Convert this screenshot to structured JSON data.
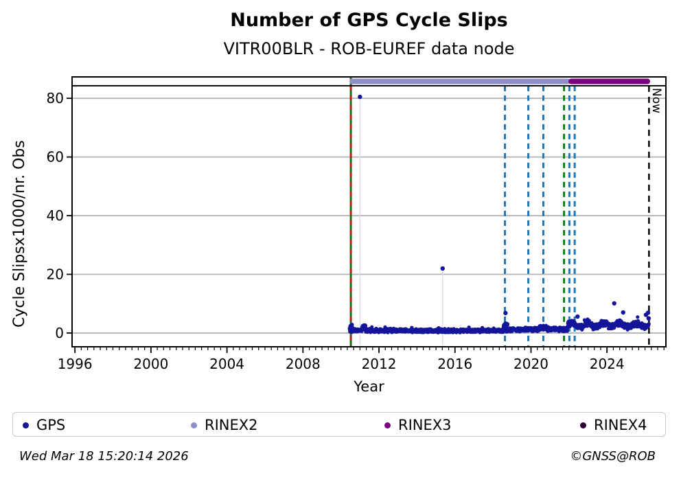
{
  "header": {
    "title": "Number of GPS Cycle Slips",
    "subtitle": "VITR00BLR - ROB-EUREF data node"
  },
  "footer": {
    "timestamp": "Wed Mar 18 15:20:14 2026",
    "credit": "©GNSS@ROB"
  },
  "chart_data": {
    "type": "scatter",
    "title": "Number of GPS Cycle Slips",
    "subtitle": "VITR00BLR - ROB-EUREF data node",
    "xlabel": "Year",
    "ylabel": "Cycle Slipsx1000/nr. Obs",
    "xlim": [
      1995.85,
      2027.1
    ],
    "ylim": [
      -4.7,
      87.3
    ],
    "xticks": [
      1996,
      2000,
      2004,
      2008,
      2012,
      2016,
      2020,
      2024
    ],
    "yticks": [
      0,
      20,
      40,
      60,
      80
    ],
    "minor_tick_step_years": 0.33333,
    "grid": "horizontal-only",
    "grid_color": "#b4b4b4",
    "separator_line_value": 84.3,
    "now": {
      "label": "Now",
      "year": 2026.21
    },
    "colors": {
      "gps": "#15159b",
      "rinex2": "#8f8fc8",
      "rinex3": "#7a0480",
      "rinex4": "#2f0233",
      "event_blue": "#1f77b4",
      "event_green": "#067c06",
      "event_red": "#d11212",
      "stem": "#d9dcea"
    },
    "legend": [
      {
        "label": "GPS",
        "color": "#15159b"
      },
      {
        "label": "RINEX2",
        "color": "#8f8fc8"
      },
      {
        "label": "RINEX3",
        "color": "#7a0480"
      },
      {
        "label": "RINEX4",
        "color": "#2f0233"
      }
    ],
    "rinex_bars": [
      {
        "name": "RINEX2",
        "start": 2010.45,
        "end": 2022.08,
        "color": "#8f8fc8"
      },
      {
        "name": "RINEX3",
        "start": 2021.97,
        "end": 2026.27,
        "color": "#7a0480"
      }
    ],
    "event_lines": [
      {
        "year": 2010.52,
        "color": "#067c06",
        "width": 3,
        "dash": "none",
        "name": "event-2010-green"
      },
      {
        "year": 2010.52,
        "color": "#d11212",
        "width": 3,
        "dash": "7 7",
        "name": "event-2010-red"
      },
      {
        "year": 2018.63,
        "color": "#1f77b4",
        "width": 3,
        "dash": "8 6",
        "name": "event-2018-blue"
      },
      {
        "year": 2019.86,
        "color": "#1f77b4",
        "width": 3,
        "dash": "8 6",
        "name": "event-2019-blue"
      },
      {
        "year": 2020.65,
        "color": "#1f77b4",
        "width": 3,
        "dash": "8 6",
        "name": "event-2020-blue"
      },
      {
        "year": 2021.74,
        "color": "#0e7d0e",
        "width": 3,
        "dash": "8 6",
        "name": "event-2021-green"
      },
      {
        "year": 2022.02,
        "color": "#1f77b4",
        "width": 3,
        "dash": "8 6",
        "name": "event-2022a-blue"
      },
      {
        "year": 2022.3,
        "color": "#1f77b4",
        "width": 3,
        "dash": "8 6",
        "name": "event-2022b-blue"
      },
      {
        "year": 2026.21,
        "color": "#000000",
        "width": 2.5,
        "dash": "9 7",
        "name": "now-line"
      }
    ],
    "gps_band_segments": [
      {
        "from": 2010.45,
        "to": 2010.62,
        "base": 1.6,
        "spread": 1.7,
        "step": 0.004
      },
      {
        "from": 2010.62,
        "to": 2011.1,
        "base": 0.9,
        "spread": 0.75,
        "step": 0.012
      },
      {
        "from": 2011.1,
        "to": 2011.3,
        "base": 1.9,
        "spread": 1.1,
        "step": 0.008
      },
      {
        "from": 2011.3,
        "to": 2013.2,
        "base": 0.85,
        "spread": 0.75,
        "step": 0.012
      },
      {
        "from": 2013.2,
        "to": 2018.55,
        "base": 0.8,
        "spread": 0.7,
        "step": 0.012
      },
      {
        "from": 2018.55,
        "to": 2018.78,
        "base": 2.2,
        "spread": 2.0,
        "step": 0.006
      },
      {
        "from": 2018.78,
        "to": 2020.45,
        "base": 1.15,
        "spread": 0.8,
        "step": 0.012
      },
      {
        "from": 2020.45,
        "to": 2020.85,
        "base": 1.7,
        "spread": 1.0,
        "step": 0.01
      },
      {
        "from": 2020.85,
        "to": 2021.92,
        "base": 1.3,
        "spread": 0.85,
        "step": 0.012
      },
      {
        "from": 2021.92,
        "to": 2026.22,
        "base": 2.7,
        "spread": 1.25,
        "step": 0.012,
        "wave": [
          0.9,
          0.85
        ]
      }
    ],
    "gps_outliers": [
      [
        2011.0,
        80.5
      ],
      [
        2015.35,
        22.0
      ],
      [
        2018.66,
        6.8
      ],
      [
        2022.45,
        5.6
      ],
      [
        2024.38,
        10.1
      ],
      [
        2024.85,
        7.0
      ],
      [
        2026.05,
        6.2
      ],
      [
        2026.16,
        6.9
      ],
      [
        2026.19,
        5.0
      ]
    ],
    "outlier_stems": [
      [
        2011.0,
        80.5
      ],
      [
        2015.35,
        22.0
      ]
    ]
  }
}
